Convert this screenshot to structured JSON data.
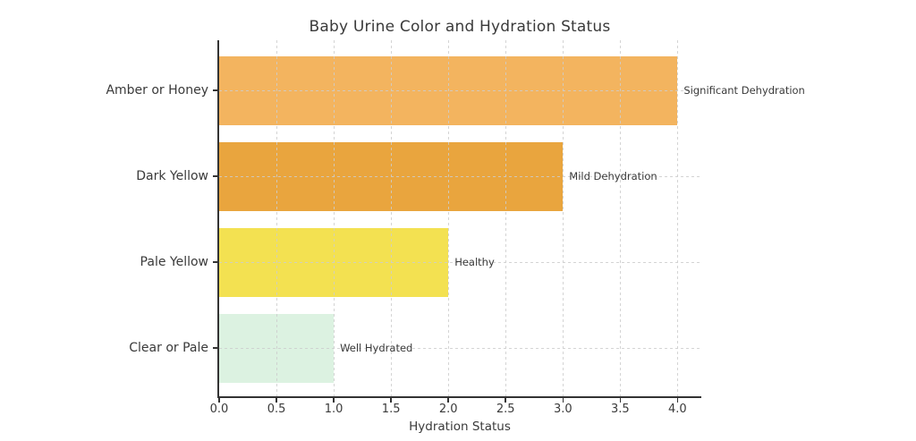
{
  "title": "Baby Urine Color and Hydration Status",
  "chart_data": {
    "type": "bar",
    "orientation": "horizontal",
    "title": "Baby Urine Color and Hydration Status",
    "xlabel": "Hydration Status",
    "ylabel": "",
    "categories": [
      "Amber or Honey",
      "Dark Yellow",
      "Pale Yellow",
      "Clear or Pale"
    ],
    "values": [
      4.0,
      3.0,
      2.0,
      1.0
    ],
    "bar_annotations": [
      "Significant Dehydration",
      "Mild Dehydration",
      "Healthy",
      "Well Hydrated"
    ],
    "bar_colors": [
      "#F3B45F",
      "#E9A53E",
      "#F3E151",
      "#DCF2E1"
    ],
    "xlim": [
      0,
      4.2
    ],
    "xticks": [
      0.0,
      0.5,
      1.0,
      1.5,
      2.0,
      2.5,
      3.0,
      3.5,
      4.0
    ],
    "xtick_labels": [
      "0.0",
      "0.5",
      "1.0",
      "1.5",
      "2.0",
      "2.5",
      "3.0",
      "3.5",
      "4.0"
    ],
    "grid": true,
    "grid_style": "dashed",
    "legend": false
  },
  "colors": {
    "background": "#ffffff",
    "text": "#3a3a3a",
    "spine": "#333333",
    "grid": "#cdcdcd"
  }
}
